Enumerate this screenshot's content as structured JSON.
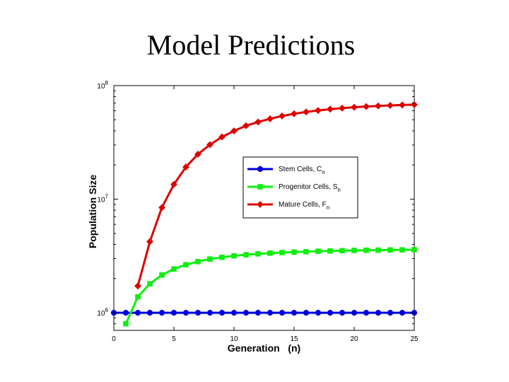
{
  "slide": {
    "title": "Model Predictions"
  },
  "chart_data": {
    "type": "line",
    "title": "",
    "xlabel": "Generation   (n)",
    "ylabel": "Population Size",
    "xlim": [
      0,
      25
    ],
    "ylim": [
      700000,
      100000000
    ],
    "y_scale": "log",
    "grid": false,
    "legend_position": "inside-right",
    "x_ticks": [
      "0",
      "5",
      "10",
      "15",
      "20",
      "25"
    ],
    "y_ticks": [
      {
        "base": "10",
        "exp": "6",
        "value": 1000000
      },
      {
        "base": "10",
        "exp": "7",
        "value": 10000000
      },
      {
        "base": "10",
        "exp": "8",
        "value": 100000000
      }
    ],
    "series": [
      {
        "name": "Stem Cells, C",
        "name_sub": "n",
        "color": "#0000dd",
        "marker": "circle",
        "x": [
          0,
          1,
          2,
          3,
          4,
          5,
          6,
          7,
          8,
          9,
          10,
          11,
          12,
          13,
          14,
          15,
          16,
          17,
          18,
          19,
          20,
          21,
          22,
          23,
          24,
          25
        ],
        "values": [
          1000000,
          1000000,
          1000000,
          1000000,
          1000000,
          1000000,
          1000000,
          1000000,
          1000000,
          1000000,
          1000000,
          1000000,
          1000000,
          1000000,
          1000000,
          1000000,
          1000000,
          1000000,
          1000000,
          1000000,
          1000000,
          1000000,
          1000000,
          1000000,
          1000000,
          1000000
        ]
      },
      {
        "name": "Progenitor Cells, S",
        "name_sub": "n",
        "color": "#11ee11",
        "marker": "square",
        "x": [
          1,
          2,
          3,
          4,
          5,
          6,
          7,
          8,
          9,
          10,
          11,
          12,
          13,
          14,
          15,
          16,
          17,
          18,
          19,
          20,
          21,
          22,
          23,
          24,
          25
        ],
        "values": [
          800000,
          1380000,
          1800000,
          2150000,
          2430000,
          2650000,
          2820000,
          2970000,
          3080000,
          3170000,
          3240000,
          3300000,
          3350000,
          3390000,
          3420000,
          3450000,
          3480000,
          3500000,
          3520000,
          3540000,
          3550000,
          3560000,
          3570000,
          3580000,
          3590000
        ]
      },
      {
        "name": "Mature Cells, F",
        "name_sub": "n",
        "color": "#dd0000",
        "marker": "diamond",
        "x": [
          2,
          3,
          4,
          5,
          6,
          7,
          8,
          9,
          10,
          11,
          12,
          13,
          14,
          15,
          16,
          17,
          18,
          19,
          20,
          21,
          22,
          23,
          24,
          25
        ],
        "values": [
          1720000,
          4230000,
          8430000,
          13500000,
          19200000,
          24900000,
          30200000,
          35300000,
          39900000,
          44300000,
          47800000,
          51000000,
          54000000,
          56500000,
          58600000,
          60400000,
          62000000,
          63300000,
          64500000,
          65400000,
          66200000,
          66900000,
          67500000,
          68000000
        ]
      }
    ]
  }
}
